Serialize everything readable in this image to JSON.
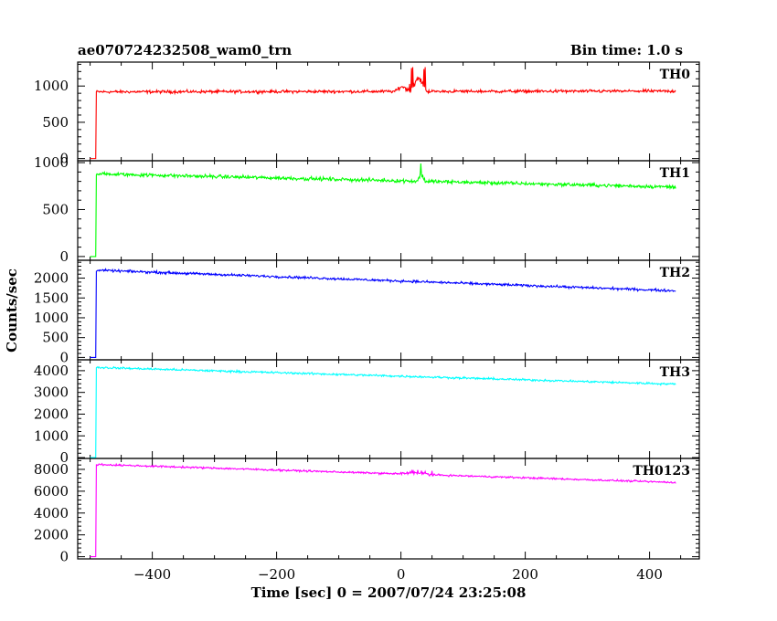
{
  "chart_data": {
    "type": "line",
    "title": "ae070724232508_wam0_trn",
    "bin_time_label": "Bin time: 1.0 s",
    "xlabel": "Time [sec] 0 = 2007/07/24 23:25:08",
    "ylabel": "Counts/sec",
    "xlim": [
      -520,
      480
    ],
    "x_ticks": [
      -400,
      -200,
      0,
      200,
      400
    ],
    "grid": false,
    "panels": [
      {
        "name": "TH0",
        "color": "#ff0000",
        "ylim": [
          -30,
          1330
        ],
        "y_ticks": [
          0,
          500,
          1000
        ],
        "trace": {
          "x_start": -490,
          "x_end": 442,
          "pre_level": 0,
          "y_start": 920,
          "y_end": 930,
          "noise": 30,
          "bursts": [
            {
              "x_from": 15,
              "x_to": 42,
              "level": 1120,
              "spike": 1300
            },
            {
              "x_from": -10,
              "x_to": 15,
              "level": 1000,
              "spike": 1060
            }
          ]
        }
      },
      {
        "name": "TH1",
        "color": "#00ff00",
        "ylim": [
          -40,
          1020
        ],
        "y_ticks": [
          0,
          500,
          1000
        ],
        "trace": {
          "x_start": -490,
          "x_end": 442,
          "pre_level": 0,
          "y_start": 880,
          "y_end": 740,
          "noise": 28,
          "bursts": [
            {
              "x_from": 25,
              "x_to": 40,
              "level": 880,
              "spike": 1000
            }
          ]
        }
      },
      {
        "name": "TH2",
        "color": "#0000ff",
        "ylim": [
          -60,
          2450
        ],
        "y_ticks": [
          0,
          500,
          1000,
          1500,
          2000
        ],
        "trace": {
          "x_start": -490,
          "x_end": 442,
          "pre_level": 0,
          "y_start": 2200,
          "y_end": 1680,
          "noise": 45,
          "bursts": []
        }
      },
      {
        "name": "TH3",
        "color": "#00ffff",
        "ylim": [
          -40,
          4500
        ],
        "y_ticks": [
          0,
          1000,
          2000,
          3000,
          4000
        ],
        "trace": {
          "x_start": -490,
          "x_end": 442,
          "pre_level": 0,
          "y_start": 4150,
          "y_end": 3380,
          "noise": 70,
          "bursts": []
        }
      },
      {
        "name": "TH0123",
        "color": "#ff00ff",
        "ylim": [
          -200,
          9000
        ],
        "y_ticks": [
          0,
          2000,
          4000,
          6000,
          8000
        ],
        "trace": {
          "x_start": -490,
          "x_end": 442,
          "pre_level": 0,
          "y_start": 8450,
          "y_end": 6800,
          "noise": 120,
          "bursts": [
            {
              "x_from": -10,
              "x_to": 50,
              "level": 7700,
              "spike": 7900
            }
          ]
        }
      }
    ]
  }
}
